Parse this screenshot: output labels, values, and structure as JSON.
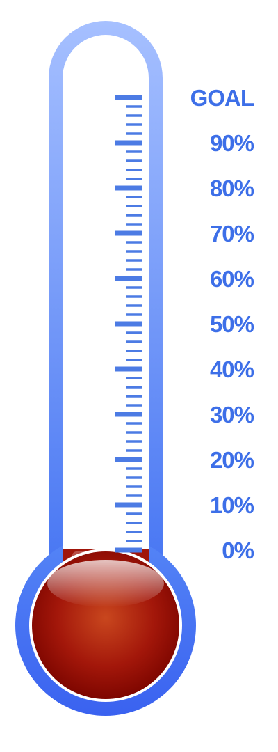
{
  "thermometer": {
    "fill_percent": 0,
    "tube_color_top": "#9cb8ff",
    "tube_color_bottom": "#3f6ff5",
    "bulb_color": "#b01a00",
    "tick_color_top": "#a9c2f5",
    "tick_color_bottom": "#4e7de6"
  },
  "scale": {
    "labels": [
      "GOAL",
      "90%",
      "80%",
      "70%",
      "60%",
      "50%",
      "40%",
      "30%",
      "20%",
      "10%",
      "0%"
    ]
  }
}
